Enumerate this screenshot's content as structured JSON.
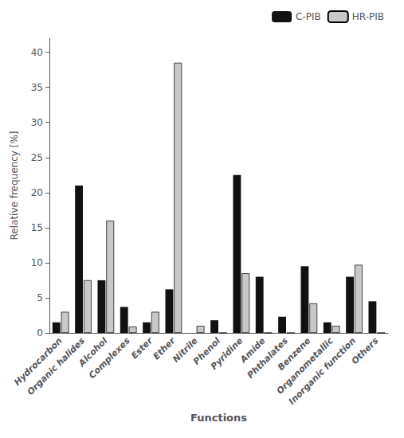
{
  "chart_data": {
    "type": "bar",
    "xlabel": "Functions",
    "ylabel": "Relative frequency [%]",
    "categories": [
      "Hydrocarbon",
      "Organic halides",
      "Alcohol",
      "Complexes",
      "Ester",
      "Ether",
      "Nitrile",
      "Phenol",
      "Pyridine",
      "Amide",
      "Phthalates",
      "Benzene",
      "Organometallic",
      "Inorganic function",
      "Others"
    ],
    "series": [
      {
        "name": "C-PIB",
        "color": "#111111",
        "values": [
          1.5,
          21.0,
          7.5,
          3.7,
          1.5,
          6.2,
          0.0,
          1.8,
          22.5,
          8.0,
          2.3,
          9.5,
          1.5,
          8.0,
          4.5
        ]
      },
      {
        "name": "HR-PIB",
        "color": "#c8c8c8",
        "values": [
          3.0,
          7.5,
          16.0,
          0.9,
          3.0,
          38.5,
          1.0,
          0.0,
          8.5,
          0.0,
          0.0,
          4.2,
          1.0,
          9.7,
          0.0
        ]
      }
    ],
    "ylim": [
      0,
      42
    ],
    "yticks": [
      0,
      5,
      10,
      15,
      20,
      25,
      30,
      35,
      40
    ],
    "grid": false,
    "legend": "upper right"
  }
}
